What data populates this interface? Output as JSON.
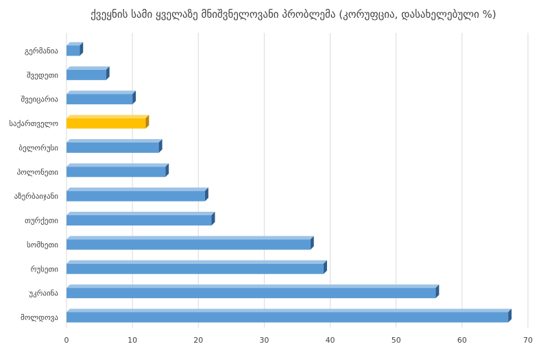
{
  "colors": {
    "bar": "#5B9BD5",
    "bar_side": "#2E5E8E",
    "bar_top": "#9DC3E6",
    "highlight": "#FFC000",
    "highlight_side": "#B8860B",
    "highlight_top": "#FFD966",
    "grid": "#D9D9D9",
    "text": "#404040"
  },
  "chart_data": {
    "type": "bar",
    "orientation": "horizontal",
    "title": "ქვეყნის სამი ყველაზე მნიშვნელოვანი პრობლემა (კორუფცია, დასახელებული %)",
    "categories": [
      "გერმანია",
      "შვედეთი",
      "შვეიცარია",
      "საქართველო",
      "ბელორუსი",
      "პოლონეთი",
      "აზერბაიჯანი",
      "თურქეთი",
      "სომხეთი",
      "რუსეთი",
      "უკრაინა",
      "მოლდოვა"
    ],
    "values": [
      2,
      6,
      10,
      12,
      14,
      15,
      21,
      22,
      37,
      39,
      56,
      67
    ],
    "highlight_category": "საქართველო",
    "xlim": [
      0,
      70
    ],
    "xticks": [
      0,
      10,
      20,
      30,
      40,
      50,
      60,
      70
    ],
    "grid": true,
    "legend": "none",
    "style": "3d"
  }
}
